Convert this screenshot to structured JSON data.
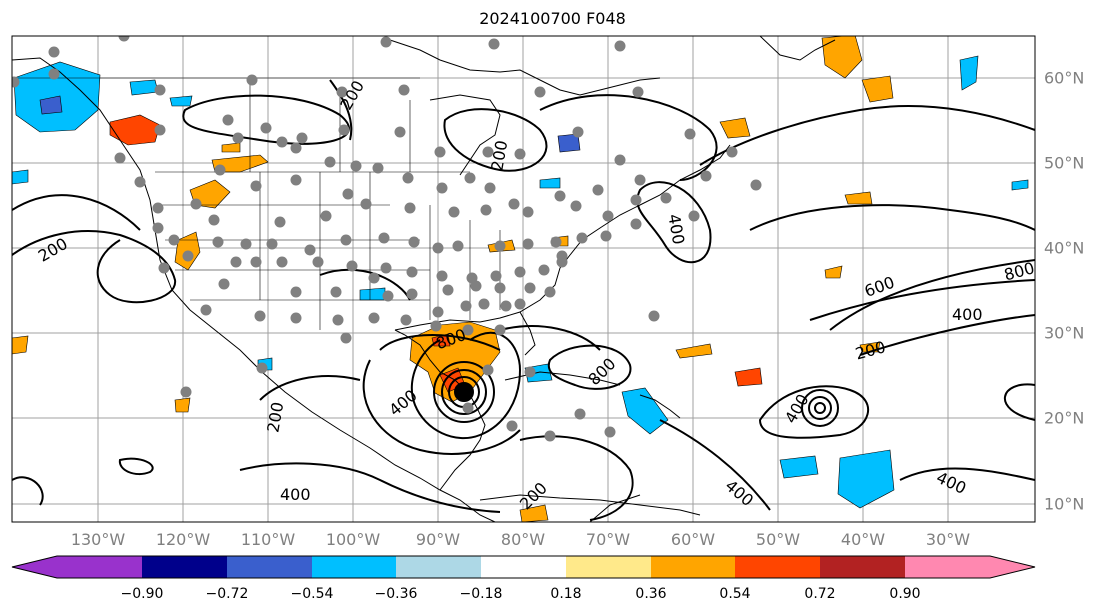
{
  "title": "2024100700 F048",
  "lon_labels": [
    "130°W",
    "120°W",
    "110°W",
    "100°W",
    "90°W",
    "80°W",
    "70°W",
    "60°W",
    "50°W",
    "40°W",
    "30°W"
  ],
  "lat_labels": [
    "60°N",
    "50°N",
    "40°N",
    "30°N",
    "20°N",
    "10°N"
  ],
  "contour_labels": [
    "200",
    "200",
    "200",
    "200",
    "200",
    "400",
    "400",
    "400",
    "400",
    "400",
    "400",
    "400",
    "600",
    "800",
    "800",
    "800",
    "200"
  ],
  "colorbar": {
    "ticks": [
      "−0.90",
      "−0.72",
      "−0.54",
      "−0.36",
      "−0.18",
      "0.18",
      "0.36",
      "0.54",
      "0.72",
      "0.90"
    ],
    "colors": [
      "#9932cc",
      "#00008b",
      "#3a5fcd",
      "#00bfff",
      "#add8e6",
      "#ffffff",
      "#ffe98a",
      "#ffa500",
      "#ff4500",
      "#b22222",
      "#ff88b0"
    ]
  },
  "colors": {
    "contour": "#000000",
    "grid": "#a0a0a0",
    "station_dot": "#808080",
    "positive_fill": "#ffa500",
    "negative_fill": "#00bfff"
  }
}
